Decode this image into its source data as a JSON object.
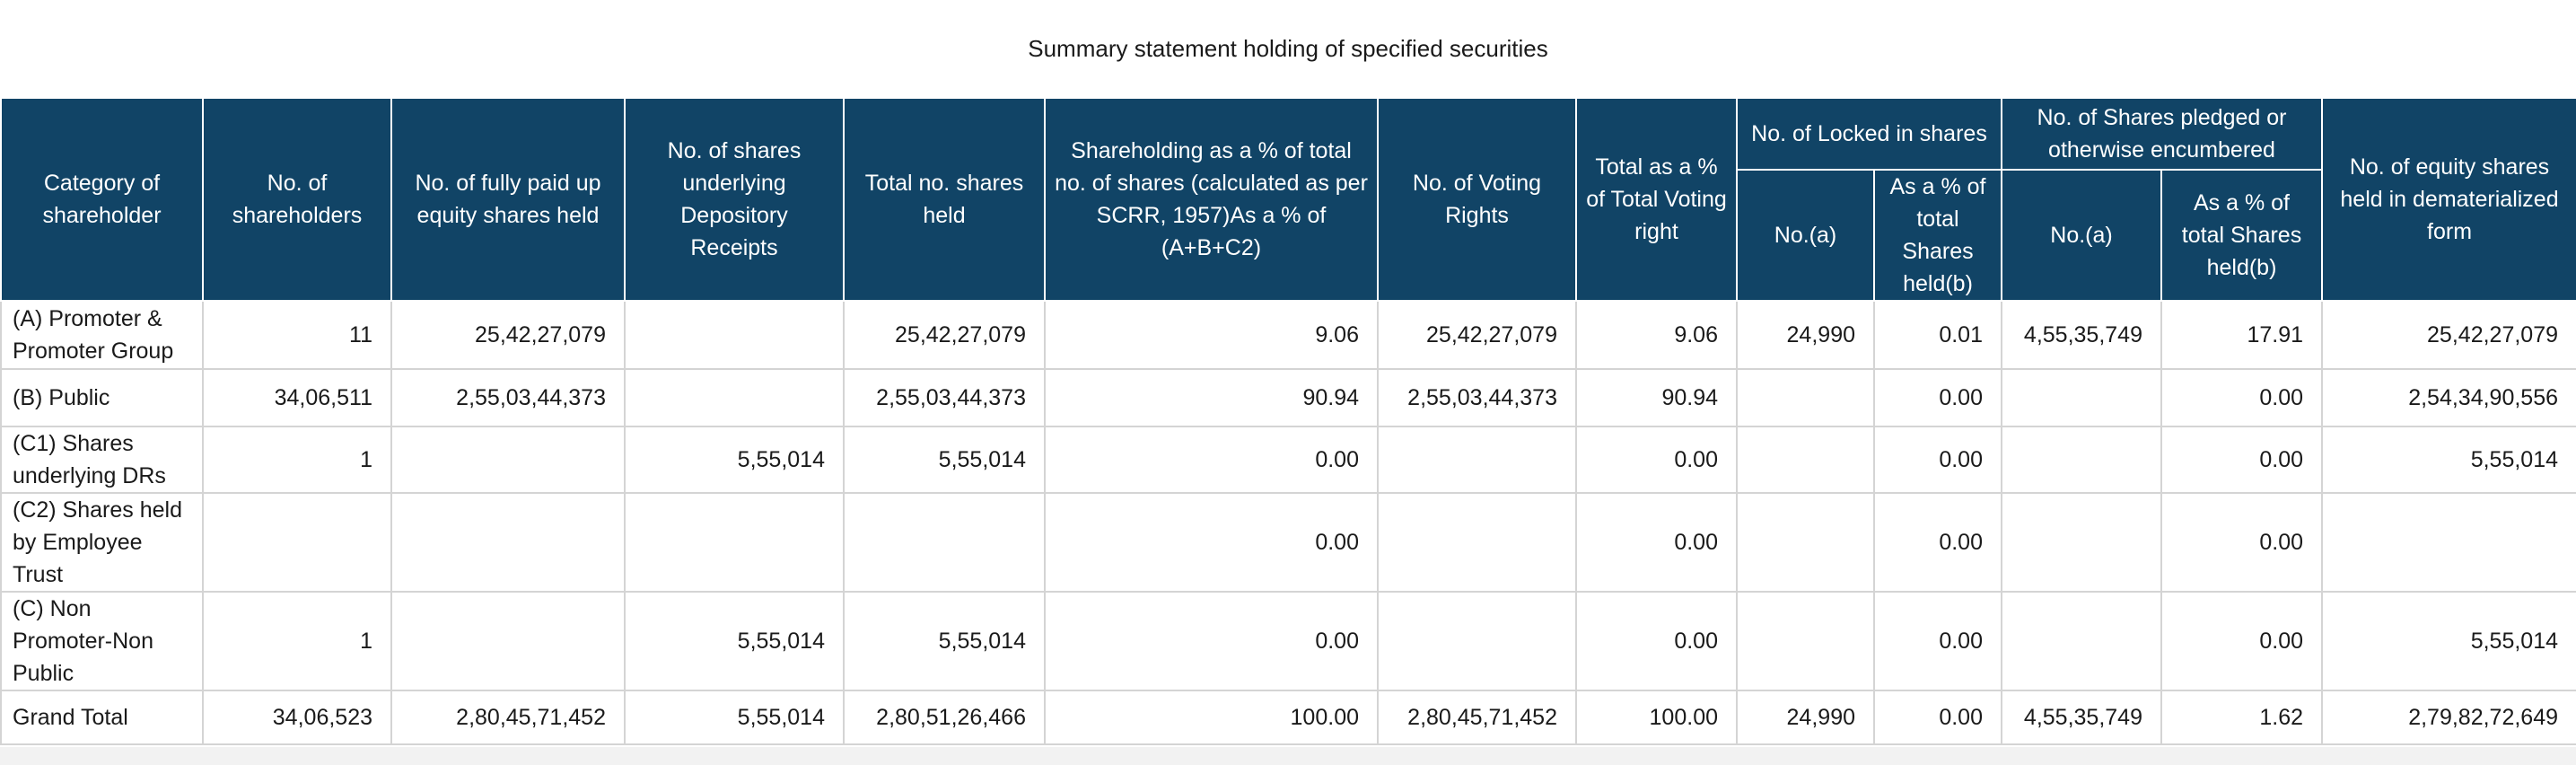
{
  "title": "Summary statement holding of specified securities",
  "headers": {
    "category": "Category of shareholder",
    "num_shareholders": "No. of shareholders",
    "fully_paid": "No. of fully paid up equity shares held",
    "depository": "No. of shares underlying Depository Receipts",
    "total_shares": "Total no. shares held",
    "shareholding_pct": "Shareholding as a % of total no. of shares (calculated as per SCRR, 1957)As a % of (A+B+C2)",
    "voting_rights": "No. of Voting Rights",
    "total_voting_pct": "Total as a % of Total Voting right",
    "locked_group": "No. of Locked in shares",
    "pledged_group": "No. of Shares pledged or otherwise encumbered",
    "sub_no": "No.(a)",
    "sub_pct": "As a % of total Shares held(b)",
    "demat": "No. of equity shares held in dematerialized form"
  },
  "rows": [
    {
      "category": "(A) Promoter & Promoter Group",
      "num_shareholders": "11",
      "fully_paid": "25,42,27,079",
      "depository": "",
      "total_shares": "25,42,27,079",
      "shareholding_pct": "9.06",
      "voting_rights": "25,42,27,079",
      "total_voting_pct": "9.06",
      "locked_no": "24,990",
      "locked_pct": "0.01",
      "pledged_no": "4,55,35,749",
      "pledged_pct": "17.91",
      "demat": "25,42,27,079"
    },
    {
      "category": "(B) Public",
      "num_shareholders": "34,06,511",
      "fully_paid": "2,55,03,44,373",
      "depository": "",
      "total_shares": "2,55,03,44,373",
      "shareholding_pct": "90.94",
      "voting_rights": "2,55,03,44,373",
      "total_voting_pct": "90.94",
      "locked_no": "",
      "locked_pct": "0.00",
      "pledged_no": "",
      "pledged_pct": "0.00",
      "demat": "2,54,34,90,556"
    },
    {
      "category": "(C1) Shares underlying DRs",
      "num_shareholders": "1",
      "fully_paid": "",
      "depository": "5,55,014",
      "total_shares": "5,55,014",
      "shareholding_pct": "0.00",
      "voting_rights": "",
      "total_voting_pct": "0.00",
      "locked_no": "",
      "locked_pct": "0.00",
      "pledged_no": "",
      "pledged_pct": "0.00",
      "demat": "5,55,014"
    },
    {
      "category": "(C2) Shares held by Employee Trust",
      "num_shareholders": "",
      "fully_paid": "",
      "depository": "",
      "total_shares": "",
      "shareholding_pct": "0.00",
      "voting_rights": "",
      "total_voting_pct": "0.00",
      "locked_no": "",
      "locked_pct": "0.00",
      "pledged_no": "",
      "pledged_pct": "0.00",
      "demat": ""
    },
    {
      "category": "(C) Non Promoter-Non Public",
      "num_shareholders": "1",
      "fully_paid": "",
      "depository": "5,55,014",
      "total_shares": "5,55,014",
      "shareholding_pct": "0.00",
      "voting_rights": "",
      "total_voting_pct": "0.00",
      "locked_no": "",
      "locked_pct": "0.00",
      "pledged_no": "",
      "pledged_pct": "0.00",
      "demat": "5,55,014"
    },
    {
      "category": "Grand Total",
      "num_shareholders": "34,06,523",
      "fully_paid": "2,80,45,71,452",
      "depository": "5,55,014",
      "total_shares": "2,80,51,26,466",
      "shareholding_pct": "100.00",
      "voting_rights": "2,80,45,71,452",
      "total_voting_pct": "100.00",
      "locked_no": "24,990",
      "locked_pct": "0.00",
      "pledged_no": "4,55,35,749",
      "pledged_pct": "1.62",
      "demat": "2,79,82,72,649"
    }
  ]
}
